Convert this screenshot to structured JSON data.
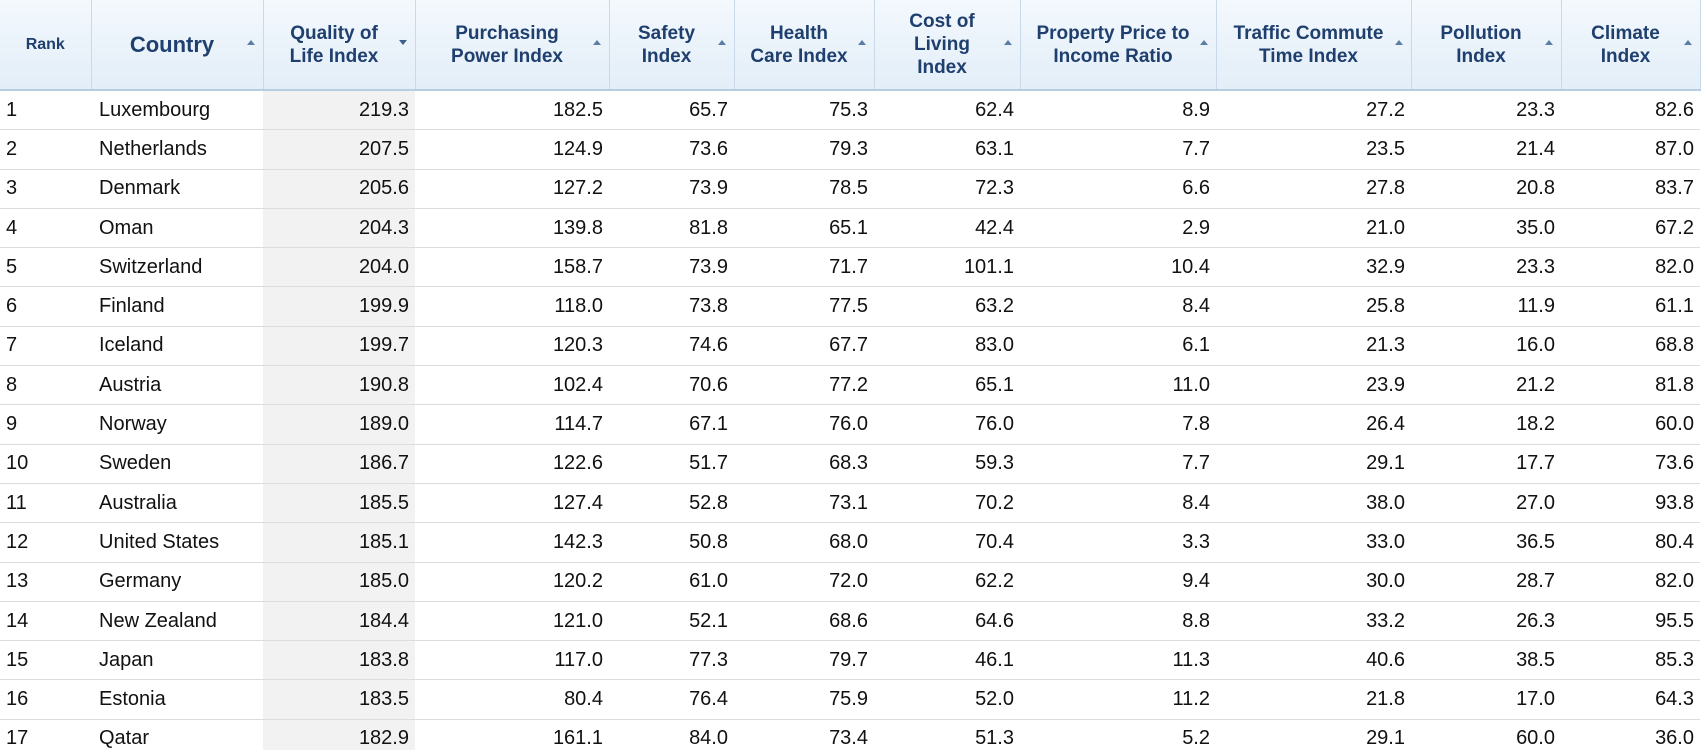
{
  "header": {
    "columns": [
      "Rank",
      "Country",
      "Quality of Life Index",
      "Purchasing Power Index",
      "Safety Index",
      "Health Care Index",
      "Cost of Living Index",
      "Property Price to Income Ratio",
      "Traffic Commute Time Index",
      "Pollution Index",
      "Climate Index"
    ]
  },
  "table": {
    "rows": [
      [
        "1",
        "Luxembourg",
        "219.3",
        "182.5",
        "65.7",
        "75.3",
        "62.4",
        "8.9",
        "27.2",
        "23.3",
        "82.6"
      ],
      [
        "2",
        "Netherlands",
        "207.5",
        "124.9",
        "73.6",
        "79.3",
        "63.1",
        "7.7",
        "23.5",
        "21.4",
        "87.0"
      ],
      [
        "3",
        "Denmark",
        "205.6",
        "127.2",
        "73.9",
        "78.5",
        "72.3",
        "6.6",
        "27.8",
        "20.8",
        "83.7"
      ],
      [
        "4",
        "Oman",
        "204.3",
        "139.8",
        "81.8",
        "65.1",
        "42.4",
        "2.9",
        "21.0",
        "35.0",
        "67.2"
      ],
      [
        "5",
        "Switzerland",
        "204.0",
        "158.7",
        "73.9",
        "71.7",
        "101.1",
        "10.4",
        "32.9",
        "23.3",
        "82.0"
      ],
      [
        "6",
        "Finland",
        "199.9",
        "118.0",
        "73.8",
        "77.5",
        "63.2",
        "8.4",
        "25.8",
        "11.9",
        "61.1"
      ],
      [
        "7",
        "Iceland",
        "199.7",
        "120.3",
        "74.6",
        "67.7",
        "83.0",
        "6.1",
        "21.3",
        "16.0",
        "68.8"
      ],
      [
        "8",
        "Austria",
        "190.8",
        "102.4",
        "70.6",
        "77.2",
        "65.1",
        "11.0",
        "23.9",
        "21.2",
        "81.8"
      ],
      [
        "9",
        "Norway",
        "189.0",
        "114.7",
        "67.1",
        "76.0",
        "76.0",
        "7.8",
        "26.4",
        "18.2",
        "60.0"
      ],
      [
        "10",
        "Sweden",
        "186.7",
        "122.6",
        "51.7",
        "68.3",
        "59.3",
        "7.7",
        "29.1",
        "17.7",
        "73.6"
      ],
      [
        "11",
        "Australia",
        "185.5",
        "127.4",
        "52.8",
        "73.1",
        "70.2",
        "8.4",
        "38.0",
        "27.0",
        "93.8"
      ],
      [
        "12",
        "United States",
        "185.1",
        "142.3",
        "50.8",
        "68.0",
        "70.4",
        "3.3",
        "33.0",
        "36.5",
        "80.4"
      ],
      [
        "13",
        "Germany",
        "185.0",
        "120.2",
        "61.0",
        "72.0",
        "62.2",
        "9.4",
        "30.0",
        "28.7",
        "82.0"
      ],
      [
        "14",
        "New Zealand",
        "184.4",
        "121.0",
        "52.1",
        "68.6",
        "64.6",
        "8.8",
        "33.2",
        "26.3",
        "95.5"
      ],
      [
        "15",
        "Japan",
        "183.8",
        "117.0",
        "77.3",
        "79.7",
        "46.1",
        "11.3",
        "40.6",
        "38.5",
        "85.3"
      ],
      [
        "16",
        "Estonia",
        "183.5",
        "80.4",
        "76.4",
        "75.9",
        "52.0",
        "11.2",
        "21.8",
        "17.0",
        "64.3"
      ],
      [
        "17",
        "Qatar",
        "182.9",
        "161.1",
        "84.0",
        "73.4",
        "51.3",
        "5.2",
        "29.1",
        "60.0",
        "36.0"
      ]
    ]
  }
}
